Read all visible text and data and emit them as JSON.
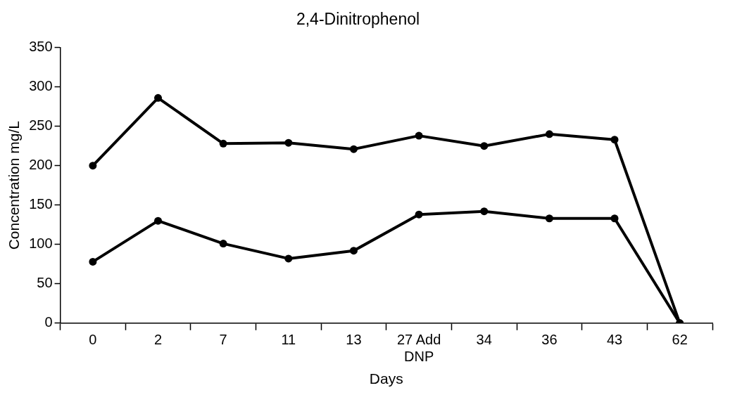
{
  "chart_data": {
    "type": "line",
    "title": "2,4-Dinitrophenol",
    "xlabel": "Days",
    "ylabel": "Concentration mg/L",
    "categories": [
      "0",
      "2",
      "7",
      "11",
      "13",
      "27 Add DNP",
      "34",
      "36",
      "43",
      "62"
    ],
    "series": [
      {
        "color": "#000000",
        "values": [
          200,
          286,
          228,
          229,
          221,
          238,
          225,
          240,
          233,
          0
        ]
      },
      {
        "color": "#000000",
        "values": [
          78,
          130,
          101,
          82,
          92,
          138,
          142,
          133,
          133,
          0
        ]
      }
    ],
    "ylim": [
      0,
      350
    ],
    "yticks": [
      0,
      50,
      100,
      150,
      200,
      250,
      300,
      350
    ],
    "grid": false,
    "legend": false,
    "marker": "circle",
    "line_style": "solid"
  }
}
